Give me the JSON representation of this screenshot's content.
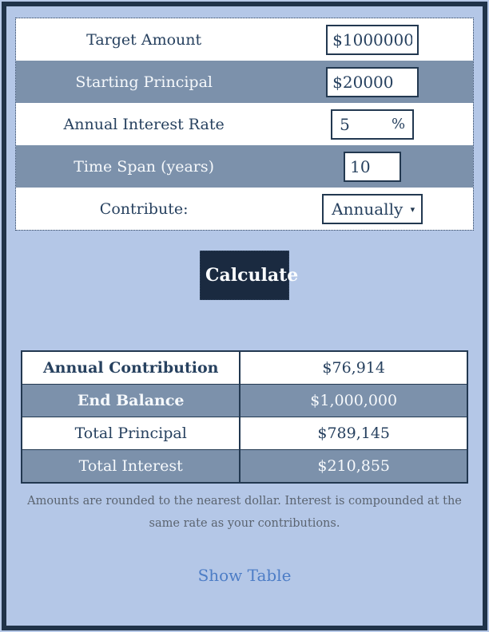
{
  "form": {
    "rows": [
      {
        "label": "Target Amount",
        "value": "$1000000"
      },
      {
        "label": "Starting Principal",
        "value": "$20000"
      },
      {
        "label": "Annual Interest Rate",
        "value": "5",
        "suffix": "%"
      },
      {
        "label": "Time Span (years)",
        "value": "10"
      },
      {
        "label": "Contribute:",
        "value": "Annually"
      }
    ]
  },
  "button": {
    "calculate_label": "Calculate"
  },
  "results": {
    "rows": [
      {
        "label": "Annual Contribution",
        "value": "$76,914"
      },
      {
        "label": "End Balance",
        "value": "$1,000,000"
      },
      {
        "label": "Total Principal",
        "value": "$789,145"
      },
      {
        "label": "Total Interest",
        "value": "$210,855"
      }
    ]
  },
  "footnote": "Amounts are rounded to the nearest dollar. Interest is compounded at the same rate as your contributions.",
  "link": {
    "show_table_label": "Show Table"
  },
  "icons": {
    "dropdown_arrow": "▾"
  },
  "colors": {
    "background": "#b4c7e7",
    "row_slate": "#7c91ab",
    "frame_border": "#203349",
    "button_bg": "#1a2a40",
    "text_navy": "#27415f",
    "link_blue": "#4d7dc6"
  }
}
